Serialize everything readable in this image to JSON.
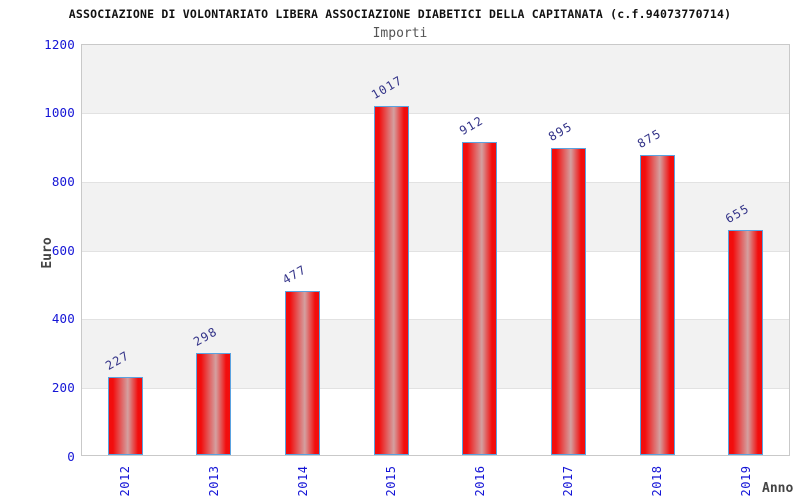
{
  "chart_data": {
    "type": "bar",
    "title": "ASSOCIAZIONE DI VOLONTARIATO LIBERA ASSOCIAZIONE DIABETICI DELLA CAPITANATA (c.f.94073770714)",
    "subtitle": "Importi",
    "xlabel": "Anno",
    "ylabel": "Euro",
    "categories": [
      "2012",
      "2013",
      "2014",
      "2015",
      "2016",
      "2017",
      "2018",
      "2019"
    ],
    "values": [
      227,
      298,
      477,
      1017,
      912,
      895,
      875,
      655
    ],
    "ylim": [
      0,
      1200
    ],
    "yticks": [
      0,
      200,
      400,
      600,
      800,
      1000,
      1200
    ],
    "legend_position": "none",
    "grid": "alternating-horizontal-bands-every-200",
    "value_labels_rotated": true,
    "colors": {
      "bar_fill": "#f20d0d",
      "bar_highlight": "#d4a0a0",
      "bar_border": "#5aa2e0",
      "tick_text": "#1515d6",
      "value_text": "#333388",
      "band_gray": "#f2f2f2",
      "plot_border": "#c9c9c9",
      "title_text": "#111111",
      "subtitle_text": "#555555",
      "axis_title_text": "#444444"
    }
  }
}
